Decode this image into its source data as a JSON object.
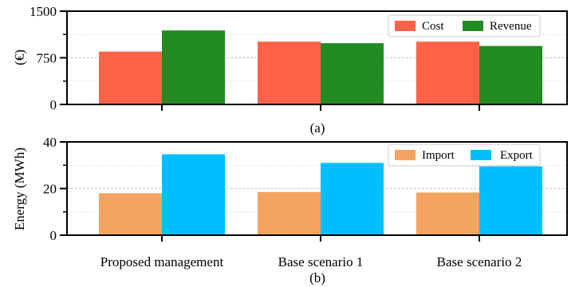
{
  "chart_data": [
    {
      "type": "bar",
      "caption": "(a)",
      "categories": [
        "Proposed management",
        "Base scenario 1",
        "Base scenario 2"
      ],
      "series": [
        {
          "name": "Cost",
          "color": "#ff6347",
          "values": [
            850,
            1010,
            1010
          ]
        },
        {
          "name": "Revenue",
          "color": "#228b22",
          "values": [
            1190,
            985,
            940
          ]
        }
      ],
      "ylabel": "(€)",
      "ylim": [
        0,
        1500
      ],
      "yticks": [
        0,
        750,
        1500
      ],
      "grid": true,
      "legend": "top-right"
    },
    {
      "type": "bar",
      "caption": "(b)",
      "categories": [
        "Proposed management",
        "Base scenario 1",
        "Base scenario 2"
      ],
      "series": [
        {
          "name": "Import",
          "color": "#f4a460",
          "values": [
            18,
            18.5,
            18.3
          ]
        },
        {
          "name": "Export",
          "color": "#00bfff",
          "values": [
            34.7,
            31,
            29.5
          ]
        }
      ],
      "ylabel": "Energy (MWh)",
      "ylim": [
        0,
        40
      ],
      "yticks": [
        0,
        20,
        40
      ],
      "grid": true,
      "legend": "top-right"
    }
  ]
}
